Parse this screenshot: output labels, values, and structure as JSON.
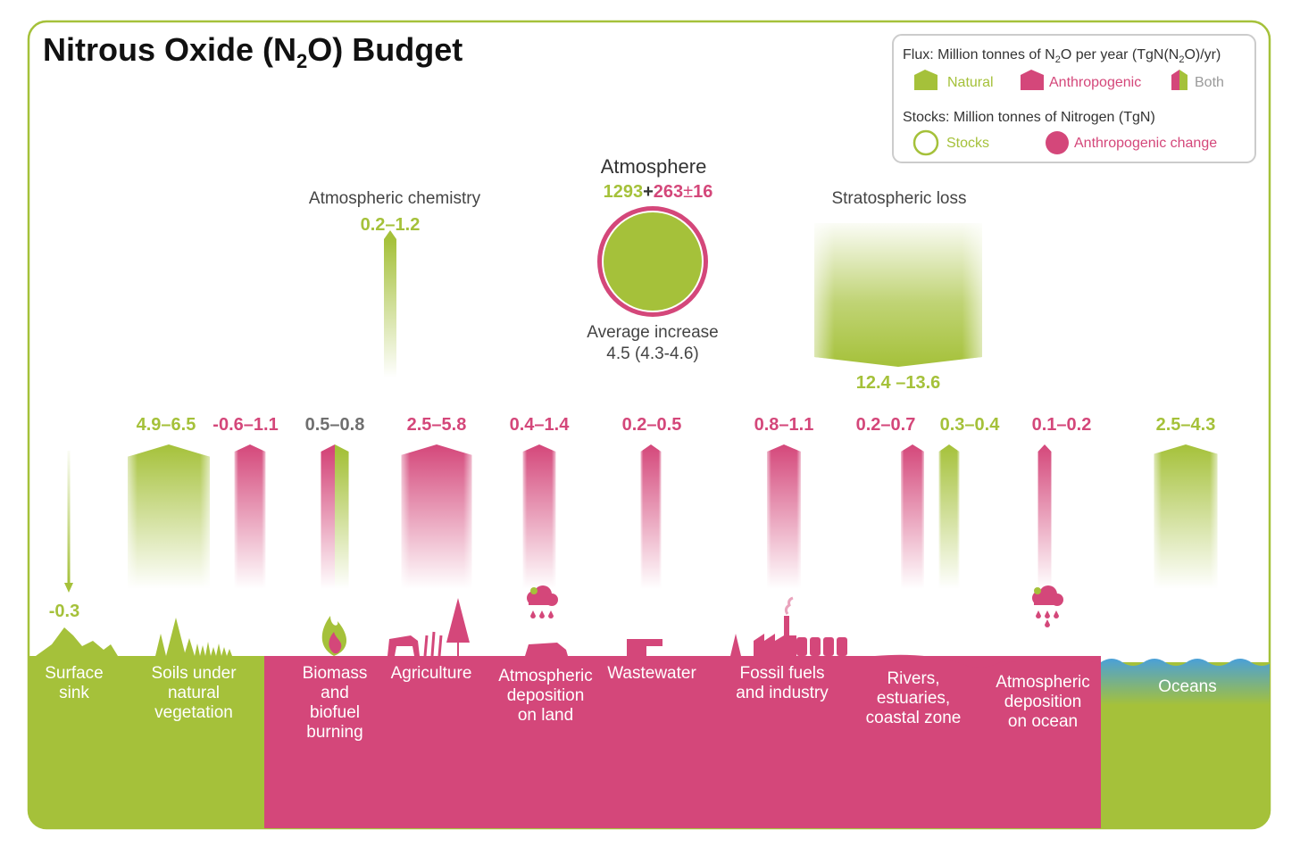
{
  "title": {
    "main": "Nitrous Oxide (N",
    "sub": "2",
    "tail": "O) Budget"
  },
  "colors": {
    "natural": "#a5c13a",
    "anthropogenic": "#d4477a",
    "both_mix": "#c0b24a",
    "gray": "#6f6f6f",
    "ocean": "#4aa0d8"
  },
  "legend": {
    "flux_title": "Flux: Million tonnes of N",
    "flux_sub": "2",
    "flux_mid": "O per year (TgN(N",
    "flux_sub2": "2",
    "flux_tail": "O)/yr)",
    "natural": "Natural",
    "anthropogenic": "Anthropogenic",
    "both": "Both",
    "stocks_title": "Stocks: Million tonnes of Nitrogen (TgN)",
    "stocks": "Stocks",
    "anthro_change": "Anthropogenic change"
  },
  "atmosphere": {
    "label": "Atmosphere",
    "stock_natural": "1293",
    "plus": "+",
    "stock_anthro": "263",
    "pm": "±",
    "stock_unc": "16",
    "avg_label": "Average increase",
    "avg_value": "4.5 (4.3-4.6)"
  },
  "chemistry": {
    "label": "Atmospheric chemistry",
    "value": "0.2–1.2"
  },
  "strat": {
    "label": "Stratospheric loss",
    "value": "12.4 –13.6"
  },
  "fluxes": [
    {
      "id": "surface-sink",
      "value": "-0.3",
      "type": "natural",
      "dir": "down",
      "magnitude": 0.3
    },
    {
      "id": "soils-natural",
      "value": "4.9–6.5",
      "type": "natural",
      "dir": "up",
      "magnitude": 5.7
    },
    {
      "id": "soils-anthro",
      "value": "-0.6–1.1",
      "type": "anthropogenic",
      "dir": "up",
      "magnitude": 0.8
    },
    {
      "id": "biomass",
      "value": "0.5–0.8",
      "type": "both",
      "dir": "up",
      "magnitude": 0.65
    },
    {
      "id": "agriculture",
      "value": "2.5–5.8",
      "type": "anthropogenic",
      "dir": "up",
      "magnitude": 4.2
    },
    {
      "id": "atm-dep-land",
      "value": "0.4–1.4",
      "type": "anthropogenic",
      "dir": "up",
      "magnitude": 0.9
    },
    {
      "id": "wastewater",
      "value": "0.2–0.5",
      "type": "anthropogenic",
      "dir": "up",
      "magnitude": 0.35
    },
    {
      "id": "fossil",
      "value": "0.8–1.1",
      "type": "anthropogenic",
      "dir": "up",
      "magnitude": 0.95
    },
    {
      "id": "rivers-anthro",
      "value": "0.2–0.7",
      "type": "anthropogenic",
      "dir": "up",
      "magnitude": 0.45
    },
    {
      "id": "rivers-natural",
      "value": "0.3–0.4",
      "type": "natural",
      "dir": "up",
      "magnitude": 0.35
    },
    {
      "id": "atm-dep-ocean",
      "value": "0.1–0.2",
      "type": "anthropogenic",
      "dir": "up",
      "magnitude": 0.15
    },
    {
      "id": "oceans",
      "value": "2.5–4.3",
      "type": "natural",
      "dir": "up",
      "magnitude": 3.4
    }
  ],
  "sources": {
    "surface_sink": [
      "Surface",
      "sink"
    ],
    "soils": [
      "Soils under",
      "natural",
      "vegetation"
    ],
    "biomass": [
      "Biomass",
      "and",
      "biofuel",
      "burning"
    ],
    "agriculture": [
      "Agriculture"
    ],
    "atm_land": [
      "Atmospheric",
      "deposition",
      "on land"
    ],
    "wastewater": [
      "Wastewater"
    ],
    "fossil": [
      "Fossil fuels",
      "and industry"
    ],
    "rivers": [
      "Rivers,",
      "estuaries,",
      "coastal zone"
    ],
    "atm_ocean": [
      "Atmospheric",
      "deposition",
      "on ocean"
    ],
    "oceans": [
      "Oceans"
    ]
  }
}
